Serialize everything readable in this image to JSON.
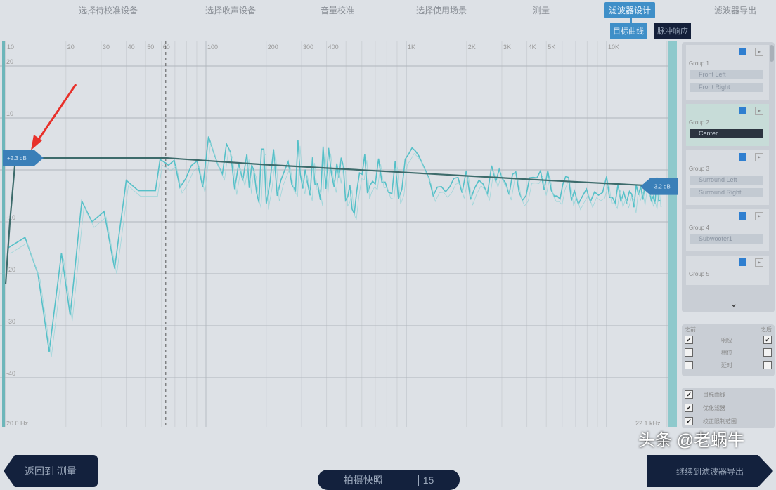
{
  "steps": [
    "选择待校准设备",
    "选择收声设备",
    "音量校准",
    "选择使用场景",
    "测量",
    "滤波器设计",
    "滤波器导出"
  ],
  "subtabs": [
    "目标曲线",
    "脉冲响应"
  ],
  "channels": {
    "groups": [
      {
        "label": "Group 1",
        "items": [
          "Front Left",
          "Front Right"
        ]
      },
      {
        "label": "Group 2",
        "items": [
          "Center"
        ],
        "selected": true
      },
      {
        "label": "Group 3",
        "items": [
          "Surround Left",
          "Surround Right"
        ]
      },
      {
        "label": "Group 4",
        "items": [
          "Subwoofer1"
        ]
      },
      {
        "label": "Group 5",
        "items": []
      }
    ]
  },
  "display": {
    "before_label": "之前",
    "after_label": "之后",
    "rows": [
      {
        "label": "响应",
        "before": true,
        "after": true
      },
      {
        "label": "相位",
        "before": false,
        "after": false
      },
      {
        "label": "延时",
        "before": false,
        "after": false
      }
    ]
  },
  "options": [
    {
      "label": "目标曲线",
      "checked": true
    },
    {
      "label": "优化滤器",
      "checked": true
    },
    {
      "label": "校正限制范围",
      "checked": true
    }
  ],
  "buttons": {
    "back": "返回到 测量",
    "snapshot": "拍摄快照",
    "snapshot_count": "15",
    "next": "继续到滤波器导出"
  },
  "watermark": "头条 @老蜗牛",
  "chart_data": {
    "type": "line",
    "x_scale": "log",
    "xlim": [
      10,
      22100
    ],
    "ylim": [
      -45,
      22
    ],
    "x_ticks": [
      "10",
      "20",
      "30",
      "40",
      "50",
      "60",
      "100",
      "200",
      "300",
      "400",
      "1K",
      "2K",
      "3K",
      "4K",
      "5K",
      "10K"
    ],
    "x_tick_values": [
      10,
      20,
      30,
      40,
      50,
      60,
      100,
      200,
      300,
      400,
      1000,
      2000,
      3000,
      4000,
      5000,
      10000
    ],
    "y_ticks": [
      20,
      10,
      -10,
      -20,
      -30,
      -40
    ],
    "range_low_label": "20.0 Hz",
    "range_high_label": "22.1 kHz",
    "low_handle_label": "+2.3 dB",
    "high_handle_label": "-3.2 dB",
    "low_limit_hz": 63,
    "colors": {
      "measured": "#55c0c8",
      "target": "#3d6b6b",
      "handle": "#3a7fb8"
    },
    "measured": [
      [
        10.3,
        -15
      ],
      [
        12.5,
        -13
      ],
      [
        14.5,
        -20
      ],
      [
        16.5,
        -35
      ],
      [
        19,
        -16
      ],
      [
        21,
        -28
      ],
      [
        24,
        -6
      ],
      [
        27,
        -10
      ],
      [
        31,
        -8
      ],
      [
        35,
        -19
      ],
      [
        40,
        -2
      ],
      [
        46,
        -4
      ],
      [
        56,
        -4
      ],
      [
        59,
        2
      ],
      [
        65,
        1
      ],
      [
        110,
        2
      ],
      [
        160,
        1
      ],
      [
        200,
        -2
      ],
      [
        280,
        0
      ],
      [
        350,
        -1
      ],
      [
        450,
        0
      ],
      [
        550,
        -3
      ],
      [
        700,
        -2
      ],
      [
        950,
        -1
      ],
      [
        1300,
        -2
      ],
      [
        1900,
        -3
      ],
      [
        2800,
        -2
      ],
      [
        3800,
        -3
      ],
      [
        5300,
        -2
      ],
      [
        6900,
        -4
      ],
      [
        10000,
        -3
      ],
      [
        13000,
        -4
      ],
      [
        16000,
        -5
      ],
      [
        19000,
        -3
      ]
    ],
    "target": [
      [
        10,
        -22
      ],
      [
        10.5,
        -10
      ],
      [
        11.2,
        2.3
      ],
      [
        63,
        2.3
      ],
      [
        200,
        1
      ],
      [
        1000,
        -0.5
      ],
      [
        5000,
        -2
      ],
      [
        20000,
        -3.2
      ]
    ]
  }
}
